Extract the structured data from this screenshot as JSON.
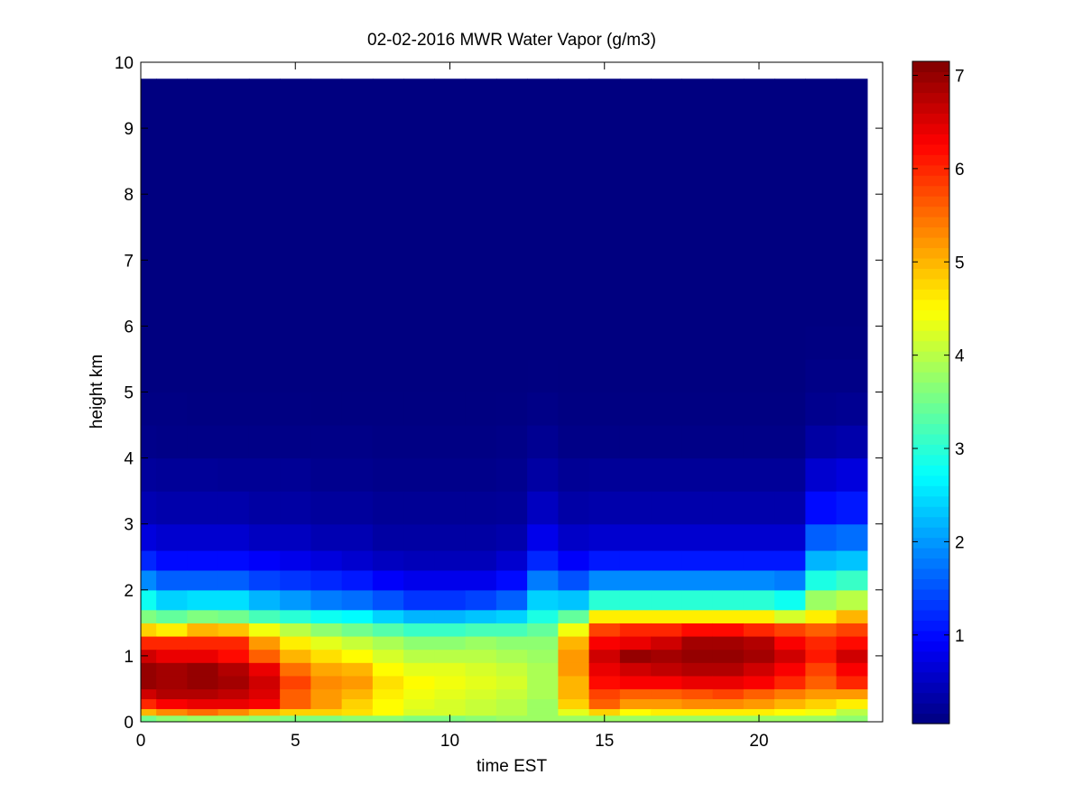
{
  "chart_data": {
    "type": "heatmap",
    "title": "02-02-2016 MWR Water Vapor (g/m3)",
    "xlabel": "time EST",
    "ylabel": "height km",
    "xlim": [
      0,
      24
    ],
    "ylim": [
      0,
      10
    ],
    "xticks": [
      0,
      5,
      10,
      15,
      20
    ],
    "xtick_labels": [
      "0",
      "5",
      "10",
      "15",
      "20"
    ],
    "yticks": [
      0,
      1,
      2,
      3,
      4,
      5,
      6,
      7,
      8,
      9,
      10
    ],
    "ytick_labels": [
      "0",
      "1",
      "2",
      "3",
      "4",
      "5",
      "6",
      "7",
      "8",
      "9",
      "10"
    ],
    "colorbar": {
      "colormap": "jet",
      "range": [
        0.05,
        7.15
      ],
      "ticks": [
        1,
        2,
        3,
        4,
        5,
        6,
        7
      ],
      "tick_labels": [
        "1",
        "2",
        "3",
        "4",
        "5",
        "6",
        "7"
      ]
    },
    "x": [
      0,
      1,
      2,
      3,
      4,
      5,
      6,
      7,
      8,
      9,
      10,
      11,
      12,
      13,
      14,
      15,
      16,
      17,
      18,
      19,
      20,
      21,
      22,
      23
    ],
    "x_extent": [
      0,
      23.5
    ],
    "heights_km": [
      0,
      0.1,
      0.2,
      0.35,
      0.5,
      0.7,
      0.9,
      1.1,
      1.3,
      1.5,
      1.7,
      2.0,
      2.3,
      2.6,
      3.0,
      3.5,
      4.0,
      4.5,
      5.0,
      5.5,
      6.0,
      7.0,
      8.0,
      9.0
    ],
    "height_extent": [
      0,
      9.75
    ],
    "profiles": [
      [
        3.5,
        5.0,
        6.0,
        6.6,
        7.0,
        7.0,
        6.6,
        6.0,
        4.8,
        3.6,
        2.8,
        1.9,
        1.2,
        0.7,
        0.4,
        0.25,
        0.12,
        0.08,
        0.05,
        0.05,
        0.05,
        0.05,
        0.05,
        0.05
      ],
      [
        3.7,
        5.3,
        6.3,
        6.8,
        6.9,
        6.9,
        6.4,
        6.0,
        4.6,
        3.4,
        2.4,
        1.6,
        1.0,
        0.6,
        0.35,
        0.22,
        0.1,
        0.08,
        0.05,
        0.05,
        0.05,
        0.05,
        0.05,
        0.05
      ],
      [
        3.8,
        5.5,
        6.4,
        6.8,
        7.0,
        7.0,
        6.4,
        6.0,
        5.0,
        3.6,
        2.5,
        1.6,
        1.0,
        0.6,
        0.35,
        0.22,
        0.1,
        0.07,
        0.05,
        0.05,
        0.05,
        0.05,
        0.05,
        0.05
      ],
      [
        3.8,
        5.3,
        6.4,
        6.7,
        6.9,
        6.8,
        6.2,
        6.0,
        4.9,
        3.5,
        2.5,
        1.6,
        1.0,
        0.6,
        0.35,
        0.2,
        0.1,
        0.07,
        0.05,
        0.05,
        0.05,
        0.05,
        0.05,
        0.05
      ],
      [
        3.7,
        5.0,
        6.3,
        6.5,
        6.6,
        6.4,
        5.6,
        5.2,
        4.4,
        3.2,
        2.2,
        1.4,
        0.9,
        0.5,
        0.3,
        0.2,
        0.1,
        0.07,
        0.05,
        0.05,
        0.05,
        0.05,
        0.05,
        0.05
      ],
      [
        3.6,
        4.8,
        5.6,
        5.6,
        5.8,
        5.5,
        5.0,
        4.6,
        4.0,
        3.0,
        2.0,
        1.3,
        0.8,
        0.5,
        0.3,
        0.2,
        0.1,
        0.07,
        0.05,
        0.05,
        0.05,
        0.05,
        0.05,
        0.05
      ],
      [
        3.6,
        4.8,
        5.2,
        5.2,
        5.3,
        5.1,
        4.7,
        4.3,
        3.7,
        2.8,
        1.8,
        1.2,
        0.7,
        0.4,
        0.25,
        0.15,
        0.1,
        0.06,
        0.05,
        0.05,
        0.05,
        0.05,
        0.05,
        0.05
      ],
      [
        3.7,
        4.7,
        4.8,
        5.0,
        5.2,
        5.0,
        4.5,
        4.1,
        3.5,
        2.7,
        1.7,
        1.1,
        0.6,
        0.4,
        0.25,
        0.15,
        0.1,
        0.06,
        0.05,
        0.05,
        0.05,
        0.05,
        0.05,
        0.05
      ],
      [
        3.7,
        4.5,
        4.5,
        4.6,
        4.7,
        4.5,
        4.2,
        3.9,
        3.3,
        2.4,
        1.5,
        0.9,
        0.5,
        0.3,
        0.2,
        0.12,
        0.08,
        0.06,
        0.05,
        0.05,
        0.05,
        0.05,
        0.05,
        0.05
      ],
      [
        3.6,
        4.2,
        4.3,
        4.4,
        4.5,
        4.3,
        4.0,
        3.7,
        3.1,
        2.2,
        1.3,
        0.8,
        0.45,
        0.3,
        0.2,
        0.12,
        0.08,
        0.06,
        0.05,
        0.05,
        0.05,
        0.05,
        0.05,
        0.05
      ],
      [
        3.6,
        4.2,
        4.2,
        4.3,
        4.4,
        4.3,
        4.0,
        3.7,
        3.1,
        2.2,
        1.3,
        0.8,
        0.45,
        0.3,
        0.2,
        0.12,
        0.08,
        0.06,
        0.05,
        0.05,
        0.05,
        0.05,
        0.05,
        0.05
      ],
      [
        3.7,
        4.1,
        4.1,
        4.2,
        4.3,
        4.2,
        4.0,
        3.8,
        3.2,
        2.3,
        1.4,
        0.8,
        0.45,
        0.3,
        0.2,
        0.12,
        0.08,
        0.06,
        0.05,
        0.05,
        0.05,
        0.05,
        0.05,
        0.05
      ],
      [
        3.8,
        4.0,
        4.0,
        4.1,
        4.2,
        4.1,
        3.9,
        3.7,
        3.2,
        2.4,
        1.6,
        1.0,
        0.6,
        0.35,
        0.22,
        0.15,
        0.1,
        0.07,
        0.05,
        0.05,
        0.05,
        0.05,
        0.05,
        0.05
      ],
      [
        3.8,
        3.8,
        3.8,
        3.9,
        3.9,
        3.9,
        3.8,
        3.7,
        3.4,
        2.9,
        2.4,
        1.8,
        1.2,
        0.8,
        0.5,
        0.3,
        0.18,
        0.1,
        0.06,
        0.05,
        0.05,
        0.05,
        0.05,
        0.05
      ],
      [
        3.8,
        4.3,
        4.8,
        5.0,
        5.0,
        5.2,
        5.2,
        5.0,
        4.4,
        3.4,
        2.3,
        1.5,
        0.9,
        0.55,
        0.32,
        0.2,
        0.1,
        0.07,
        0.05,
        0.05,
        0.05,
        0.05,
        0.05,
        0.05
      ],
      [
        3.8,
        4.8,
        5.6,
        5.8,
        6.2,
        6.4,
        6.6,
        6.3,
        5.8,
        4.6,
        3.0,
        1.9,
        1.1,
        0.6,
        0.35,
        0.22,
        0.1,
        0.07,
        0.05,
        0.05,
        0.05,
        0.05,
        0.05,
        0.05
      ],
      [
        3.8,
        4.5,
        5.2,
        5.6,
        6.3,
        6.6,
        7.0,
        6.4,
        6.0,
        4.6,
        3.0,
        1.9,
        1.1,
        0.6,
        0.35,
        0.22,
        0.1,
        0.07,
        0.05,
        0.05,
        0.05,
        0.05,
        0.05,
        0.05
      ],
      [
        3.8,
        4.6,
        5.2,
        5.6,
        6.3,
        6.7,
        6.9,
        6.6,
        6.0,
        4.6,
        3.0,
        1.9,
        1.1,
        0.6,
        0.35,
        0.22,
        0.1,
        0.07,
        0.05,
        0.05,
        0.05,
        0.05,
        0.05,
        0.05
      ],
      [
        3.8,
        4.6,
        5.3,
        5.7,
        6.4,
        6.8,
        7.0,
        6.9,
        6.2,
        4.6,
        3.0,
        1.9,
        1.1,
        0.6,
        0.35,
        0.22,
        0.1,
        0.07,
        0.05,
        0.05,
        0.05,
        0.05,
        0.05,
        0.05
      ],
      [
        3.8,
        4.6,
        5.3,
        5.8,
        6.4,
        6.8,
        7.0,
        6.9,
        6.2,
        4.6,
        3.0,
        1.9,
        1.1,
        0.6,
        0.35,
        0.22,
        0.1,
        0.07,
        0.05,
        0.05,
        0.05,
        0.05,
        0.05,
        0.05
      ],
      [
        3.8,
        4.6,
        5.2,
        5.6,
        6.3,
        6.6,
        6.9,
        6.8,
        6.0,
        4.6,
        3.0,
        1.9,
        1.1,
        0.6,
        0.35,
        0.22,
        0.1,
        0.07,
        0.05,
        0.05,
        0.05,
        0.05,
        0.05,
        0.05
      ],
      [
        3.8,
        4.5,
        5.0,
        5.4,
        6.0,
        6.3,
        6.6,
        6.3,
        5.8,
        4.2,
        2.8,
        1.8,
        1.1,
        0.6,
        0.35,
        0.22,
        0.1,
        0.07,
        0.05,
        0.05,
        0.05,
        0.05,
        0.05,
        0.05
      ],
      [
        3.8,
        4.4,
        4.8,
        5.2,
        5.6,
        5.8,
        6.1,
        6.0,
        5.6,
        4.6,
        3.8,
        2.9,
        2.2,
        1.6,
        1.0,
        0.6,
        0.3,
        0.15,
        0.1,
        0.07,
        0.05,
        0.05,
        0.05,
        0.05
      ],
      [
        3.7,
        4.0,
        4.6,
        5.2,
        6.0,
        6.3,
        6.6,
        6.2,
        5.8,
        5.0,
        4.0,
        3.1,
        2.3,
        1.7,
        1.1,
        0.7,
        0.35,
        0.18,
        0.1,
        0.07,
        0.05,
        0.05,
        0.05,
        0.05
      ]
    ]
  }
}
